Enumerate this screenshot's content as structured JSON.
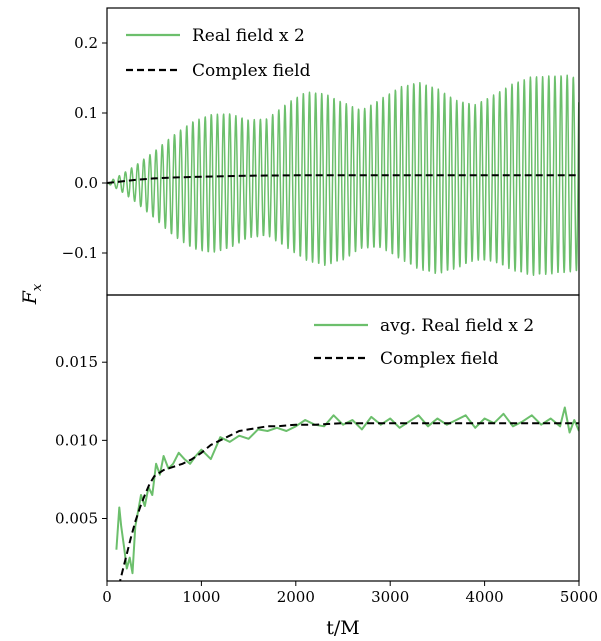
{
  "colors": {
    "real": "#6cbf6c",
    "complex": "#000000"
  },
  "shared": {
    "xlabel": "t/M",
    "ylabel": "F",
    "ylabel_sub": "x"
  },
  "chart_data": [
    {
      "type": "line",
      "panel": "top",
      "xlim": [
        0,
        5000
      ],
      "ylim": [
        -0.16,
        0.25
      ],
      "yticks": [
        -0.1,
        0.0,
        0.1,
        0.2
      ],
      "ytick_labels": [
        "−0.1",
        "0.0",
        "0.1",
        "0.2"
      ],
      "legend_placement": "top-left",
      "series": [
        {
          "name": "Real field x 2",
          "style": "solid",
          "oscillation_period": 65,
          "envelope": {
            "t": [
              0,
              150,
              300,
              500,
              700,
              900,
              1100,
              1300,
              1500,
              1700,
              1900,
              2100,
              2300,
              2500,
              2700,
              2900,
              3100,
              3300,
              3500,
              3700,
              3900,
              4100,
              4300,
              4500,
              4700,
              4900,
              5000
            ],
            "max": [
              0.0,
              0.012,
              0.025,
              0.045,
              0.068,
              0.087,
              0.098,
              0.099,
              0.09,
              0.092,
              0.113,
              0.13,
              0.128,
              0.115,
              0.104,
              0.12,
              0.137,
              0.144,
              0.135,
              0.118,
              0.112,
              0.126,
              0.142,
              0.152,
              0.153,
              0.154,
              0.148
            ],
            "min": [
              0.0,
              -0.012,
              -0.027,
              -0.05,
              -0.075,
              -0.093,
              -0.1,
              -0.093,
              -0.078,
              -0.075,
              -0.092,
              -0.11,
              -0.118,
              -0.11,
              -0.093,
              -0.092,
              -0.108,
              -0.123,
              -0.13,
              -0.122,
              -0.11,
              -0.112,
              -0.125,
              -0.132,
              -0.13,
              -0.127,
              -0.126
            ]
          }
        },
        {
          "name": "Complex field",
          "style": "dashed",
          "x": [
            0,
            100,
            200,
            300,
            500,
            700,
            1000,
            1500,
            2000,
            2500,
            3000,
            3500,
            4000,
            4500,
            5000
          ],
          "y": [
            0.0,
            0.0015,
            0.003,
            0.0045,
            0.0065,
            0.0078,
            0.009,
            0.0105,
            0.011,
            0.0112,
            0.0112,
            0.0112,
            0.0112,
            0.0112,
            0.0112
          ]
        }
      ]
    },
    {
      "type": "line",
      "panel": "bottom",
      "xlim": [
        0,
        5000
      ],
      "ylim": [
        0.001,
        0.0193
      ],
      "yticks": [
        0.005,
        0.01,
        0.015
      ],
      "ytick_labels": [
        "0.005",
        "0.010",
        "0.015"
      ],
      "xticks": [
        0,
        1000,
        2000,
        3000,
        4000,
        5000
      ],
      "xtick_labels": [
        "0",
        "1000",
        "2000",
        "3000",
        "4000",
        "5000"
      ],
      "legend_placement": "top-right",
      "series": [
        {
          "name": "avg. Real field x 2",
          "style": "solid",
          "x": [
            100,
            130,
            150,
            180,
            210,
            240,
            270,
            300,
            330,
            360,
            400,
            440,
            480,
            520,
            560,
            600,
            650,
            700,
            760,
            820,
            880,
            940,
            1000,
            1100,
            1200,
            1300,
            1400,
            1500,
            1600,
            1700,
            1800,
            1900,
            2000,
            2100,
            2200,
            2300,
            2400,
            2500,
            2600,
            2700,
            2800,
            2900,
            3000,
            3100,
            3200,
            3300,
            3400,
            3500,
            3600,
            3700,
            3800,
            3900,
            4000,
            4100,
            4200,
            4300,
            4400,
            4500,
            4600,
            4700,
            4800,
            4850,
            4900,
            4950,
            5000
          ],
          "y": [
            0.003,
            0.0057,
            0.0045,
            0.0032,
            0.0018,
            0.0025,
            0.0015,
            0.0045,
            0.0055,
            0.0065,
            0.0058,
            0.007,
            0.0065,
            0.0085,
            0.0078,
            0.009,
            0.0082,
            0.0085,
            0.0092,
            0.0088,
            0.0085,
            0.009,
            0.0094,
            0.0088,
            0.0102,
            0.0099,
            0.0103,
            0.0101,
            0.0107,
            0.0106,
            0.0108,
            0.0106,
            0.0109,
            0.0113,
            0.011,
            0.0109,
            0.0116,
            0.011,
            0.0113,
            0.0107,
            0.0115,
            0.011,
            0.0114,
            0.0108,
            0.0112,
            0.0116,
            0.0109,
            0.0114,
            0.011,
            0.0113,
            0.0116,
            0.0108,
            0.0114,
            0.0111,
            0.0117,
            0.0109,
            0.0112,
            0.0116,
            0.011,
            0.0114,
            0.0109,
            0.0121,
            0.0105,
            0.0113,
            0.0106
          ]
        },
        {
          "name": "Complex field",
          "style": "dashed",
          "x": [
            100,
            150,
            200,
            250,
            300,
            350,
            400,
            450,
            500,
            600,
            700,
            800,
            900,
            1000,
            1100,
            1200,
            1300,
            1400,
            1500,
            1600,
            1700,
            1800,
            2000,
            2200,
            2500,
            3000,
            3500,
            4000,
            4500,
            5000
          ],
          "y": [
            0.0,
            0.0013,
            0.0025,
            0.0037,
            0.0048,
            0.0057,
            0.0065,
            0.0072,
            0.0077,
            0.0081,
            0.0083,
            0.0085,
            0.0088,
            0.0092,
            0.0097,
            0.01,
            0.0103,
            0.0106,
            0.0107,
            0.0108,
            0.0109,
            0.0109,
            0.011,
            0.011,
            0.0111,
            0.0111,
            0.0111,
            0.0111,
            0.0111,
            0.0111
          ]
        }
      ]
    }
  ]
}
